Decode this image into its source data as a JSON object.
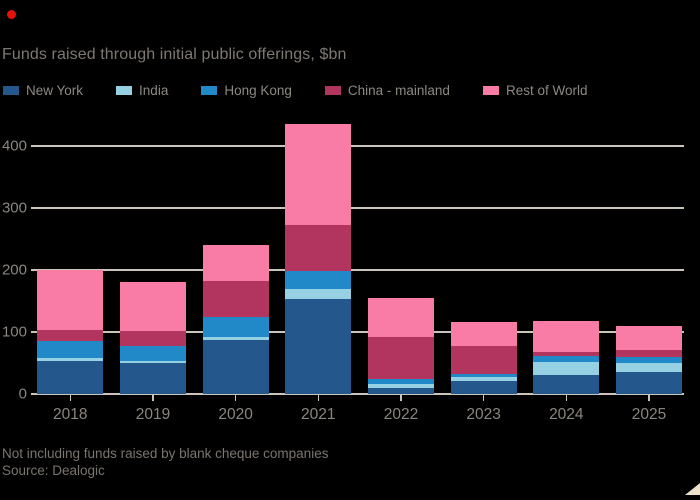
{
  "status_dot": {
    "color": "#e3120b"
  },
  "header": {
    "title": "Funds raised through initial public offerings, $bn"
  },
  "colors": {
    "background": "#000000",
    "gridline": "#cbc4bb",
    "axis_text": "#8a8580",
    "title_text": "#7e7873",
    "legend_text": "#8d8882",
    "footer_text": "#7b756f",
    "corner_fold": "#ede0cd"
  },
  "chart_data": {
    "type": "bar",
    "stacked": true,
    "title": "Funds raised through initial public offerings, $bn",
    "xlabel": "",
    "ylabel": "",
    "categories": [
      "2018",
      "2019",
      "2020",
      "2021",
      "2022",
      "2023",
      "2024",
      "2025"
    ],
    "series": [
      {
        "name": "New York",
        "color": "#24588c",
        "values": [
          53,
          50,
          87,
          153,
          9,
          21,
          31,
          36
        ]
      },
      {
        "name": "India",
        "color": "#96d1e3",
        "values": [
          5,
          4,
          5,
          16,
          7,
          6,
          21,
          14
        ]
      },
      {
        "name": "Hong Kong",
        "color": "#2289c8",
        "values": [
          28,
          24,
          32,
          29,
          8,
          6,
          9,
          10
        ]
      },
      {
        "name": "China - mainland",
        "color": "#b2355f",
        "values": [
          17,
          24,
          58,
          75,
          68,
          44,
          7,
          11
        ]
      },
      {
        "name": "Rest of World",
        "color": "#f97ca7",
        "values": [
          97,
          78,
          58,
          162,
          63,
          39,
          49,
          39
        ]
      }
    ],
    "totals": [
      200,
      180,
      240,
      435,
      155,
      116,
      117,
      110
    ],
    "ylim": [
      0,
      450
    ],
    "yticks": [
      0,
      100,
      200,
      300,
      400
    ],
    "grid": true,
    "legend_position": "top"
  },
  "footer": {
    "note": "Not including funds raised by blank cheque companies",
    "source": "Source: Dealogic"
  }
}
